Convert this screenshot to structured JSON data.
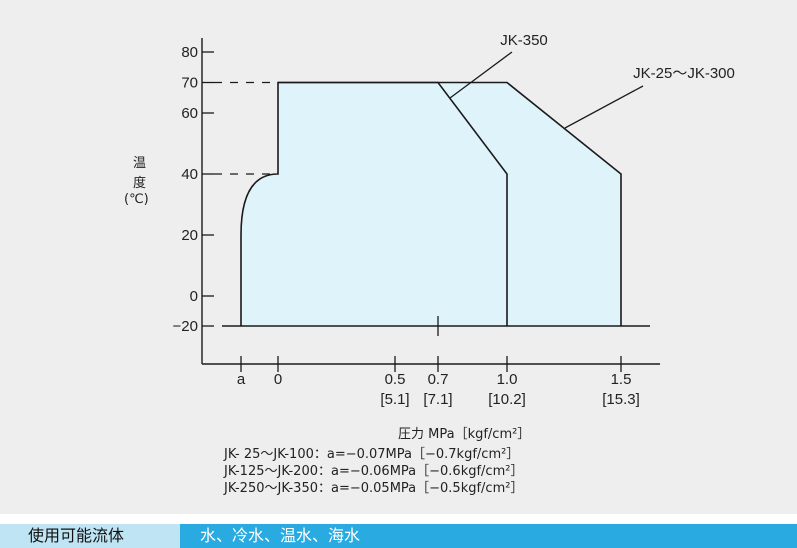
{
  "chart_data": {
    "type": "area",
    "title": "",
    "ylabel": [
      "温",
      "度",
      "(℃)"
    ],
    "xlabel": "圧力 MPa［kgf/cm²］",
    "y_ticks": [
      80,
      70,
      60,
      40,
      20,
      0,
      -20
    ],
    "y_tick_labels": [
      "80",
      "70",
      "60",
      "40",
      "20",
      "0",
      "−20"
    ],
    "x_ticks": [
      {
        "key": "a",
        "value": -0.1,
        "label": "a",
        "sub": ""
      },
      {
        "key": "0",
        "value": 0,
        "label": "0",
        "sub": ""
      },
      {
        "key": "0.5",
        "value": 0.5,
        "label": "0.5",
        "sub": "[5.1]"
      },
      {
        "key": "0.7",
        "value": 0.7,
        "label": "0.7",
        "sub": "[7.1]"
      },
      {
        "key": "1.0",
        "value": 1.0,
        "label": "1.0",
        "sub": "[10.2]"
      },
      {
        "key": "1.5",
        "value": 1.5,
        "label": "1.5",
        "sub": "[15.3]"
      }
    ],
    "series": [
      {
        "name": "JK-25〜JK-300",
        "points": [
          [
            -0.1,
            -20
          ],
          [
            -0.1,
            20
          ],
          [
            0,
            40
          ],
          [
            0,
            70
          ],
          [
            1.0,
            70
          ],
          [
            1.5,
            40
          ],
          [
            1.5,
            -20
          ]
        ]
      },
      {
        "name": "JK-350",
        "points": [
          [
            -0.1,
            -20
          ],
          [
            -0.1,
            20
          ],
          [
            0,
            40
          ],
          [
            0,
            70
          ],
          [
            0.7,
            70
          ],
          [
            1.0,
            40
          ],
          [
            1.0,
            -20
          ]
        ]
      }
    ],
    "fill_color": "#dff3fb",
    "line_color": "#1a1a1a"
  },
  "notes": [
    "JK-  25〜JK-100：a=−0.07MPa［−0.7kgf/cm²］",
    "JK-125〜JK-200：a=−0.06MPa［−0.6kgf/cm²］",
    "JK-250〜JK-350：a=−0.05MPa［−0.5kgf/cm²］"
  ],
  "footer": {
    "label": "使用可能流体",
    "value": "水、冷水、温水、海水",
    "label_bg": "#bfe4f4",
    "value_bg": "#29abe2"
  }
}
